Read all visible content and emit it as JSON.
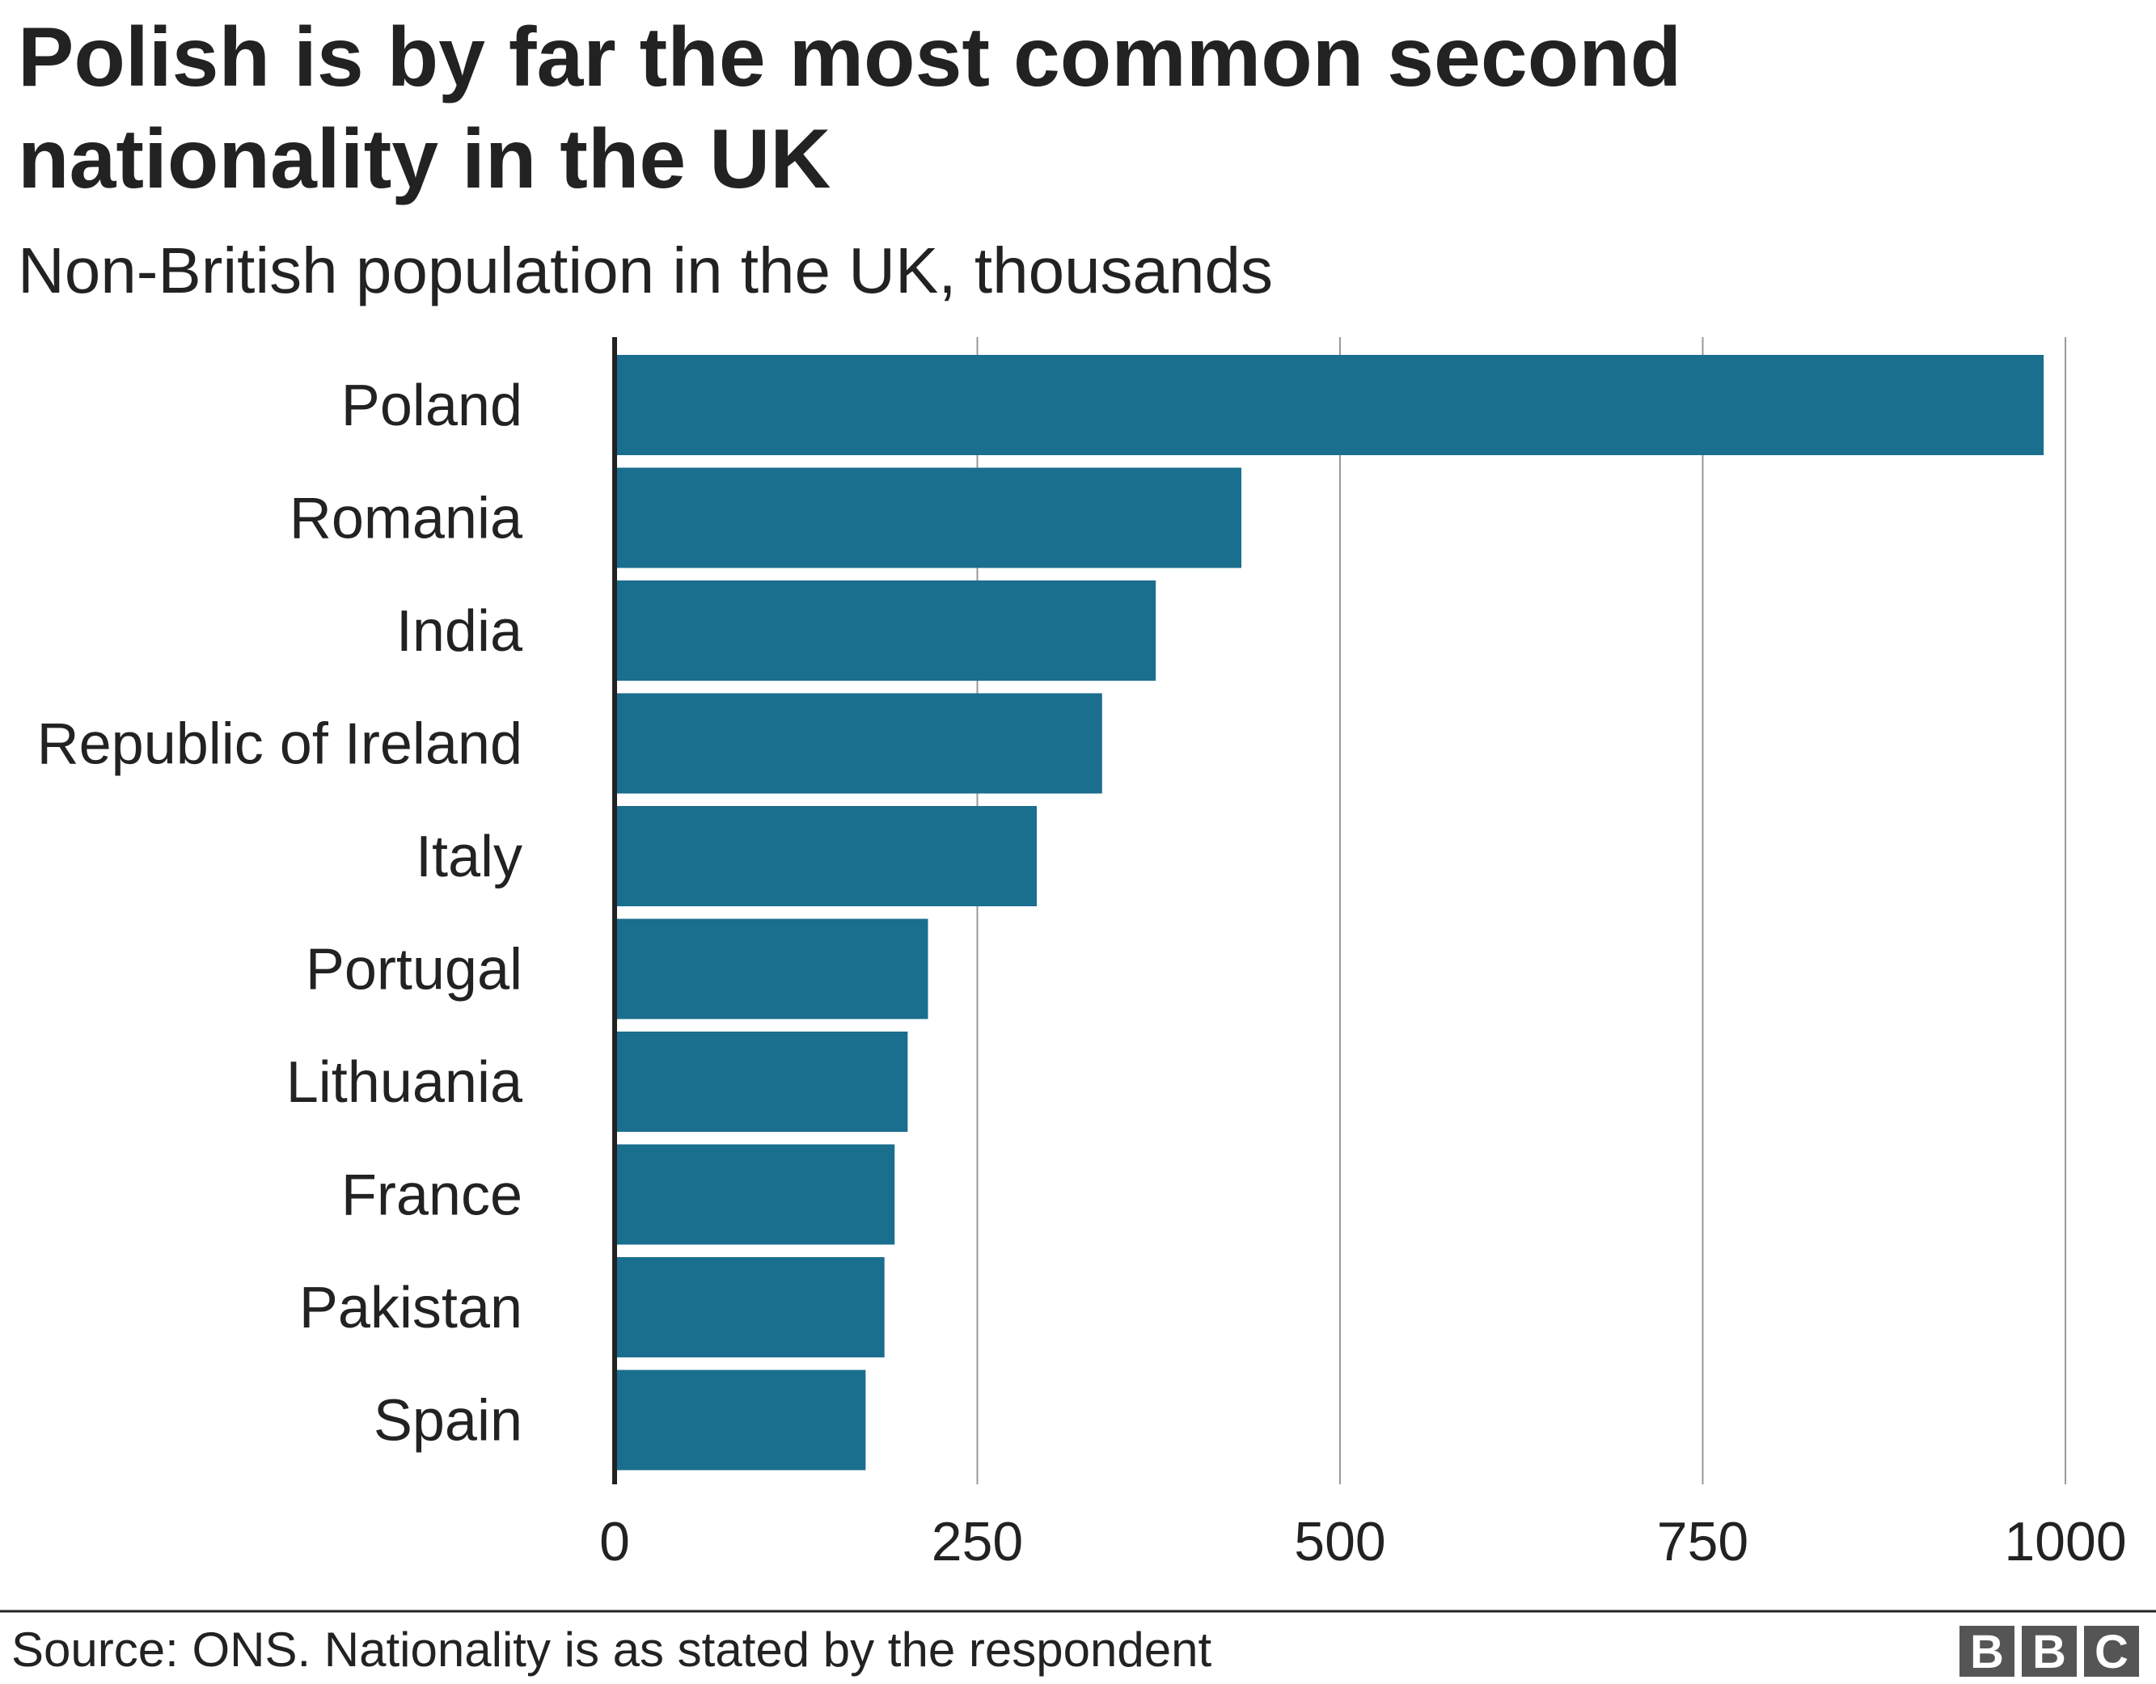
{
  "chart_data": {
    "type": "barh",
    "title": "Polish is by far the most common second nationality in the UK",
    "subtitle": "Non-British population in the UK, thousands",
    "categories": [
      "Poland",
      "Romania",
      "India",
      "Republic of Ireland",
      "Italy",
      "Portugal",
      "Lithuania",
      "France",
      "Pakistan",
      "Spain"
    ],
    "values": [
      985,
      432,
      373,
      336,
      291,
      216,
      202,
      193,
      186,
      173
    ],
    "color": "#1a6e8e",
    "xlim": [
      0,
      1000
    ],
    "xticks": [
      0,
      250,
      500,
      750,
      1000
    ],
    "grid": true,
    "source": "Source: ONS. Nationality is as stated by the respondent",
    "logo": [
      "B",
      "B",
      "C"
    ]
  }
}
